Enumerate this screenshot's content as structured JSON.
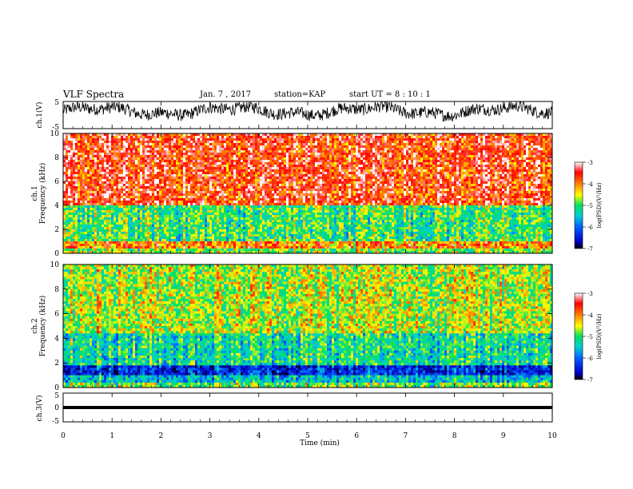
{
  "header": {
    "title": "VLF Spectra",
    "date": "Jan. 7 , 2017",
    "station": "station=KAP",
    "start": "start UT =  8 : 10 : 1"
  },
  "chart_data": [
    {
      "type": "line",
      "name": "ch1-waveform",
      "ylabel": "ch.1(V)",
      "ylim": [
        -5,
        5
      ],
      "yticks": [
        "5",
        "-5"
      ],
      "xlim": [
        0,
        10
      ],
      "description_values": "noisy waveform fluctuating roughly between -3 and 5 V"
    },
    {
      "type": "heatmap",
      "name": "ch1-spectrogram",
      "ylabel_top": "ch.1",
      "ylabel": "Frequency (kHz)",
      "ylim": [
        0,
        10
      ],
      "yticks": [
        "0",
        "2",
        "4",
        "6",
        "8",
        "10"
      ],
      "xlim": [
        0,
        9.83
      ],
      "colorbar": {
        "label": "log(PSD)(V²/Hz)",
        "range": [
          -7,
          -3
        ],
        "ticks": [
          "-3",
          "-4",
          "-5",
          "-6",
          "-7"
        ]
      },
      "bands": [
        {
          "f0": 0,
          "f1": 0.5,
          "level": -4.8
        },
        {
          "f0": 0.5,
          "f1": 1.0,
          "level": -4.0
        },
        {
          "f0": 1.0,
          "f1": 4.0,
          "level": -5.0
        },
        {
          "f0": 4.0,
          "f1": 10.0,
          "level": -3.6
        }
      ]
    },
    {
      "type": "heatmap",
      "name": "ch2-spectrogram",
      "ylabel_top": "ch.2",
      "ylabel": "Frequency (kHz)",
      "ylim": [
        0,
        10
      ],
      "yticks": [
        "0",
        "2",
        "4",
        "6",
        "8",
        "10"
      ],
      "xlim": [
        0,
        9.83
      ],
      "colorbar": {
        "label": "log(PSD)(V²/Hz)",
        "range": [
          -7,
          -3
        ],
        "ticks": [
          "-3",
          "-4",
          "-5",
          "-6",
          "-7"
        ]
      },
      "bands": [
        {
          "f0": 0,
          "f1": 0.5,
          "level": -4.8
        },
        {
          "f0": 0.5,
          "f1": 1.0,
          "level": -5.5
        },
        {
          "f0": 1.0,
          "f1": 1.8,
          "level": -6.4
        },
        {
          "f0": 1.8,
          "f1": 4.5,
          "level": -5.2
        },
        {
          "f0": 4.5,
          "f1": 10.0,
          "level": -4.6
        }
      ]
    },
    {
      "type": "line",
      "name": "ch3-waveform",
      "ylabel": "ch.3(V)",
      "ylim": [
        -5,
        5
      ],
      "yticks": [
        "5",
        "0",
        "-5"
      ],
      "xlim": [
        0,
        10
      ],
      "constant_value": 0
    }
  ],
  "xaxis": {
    "label": "Time (min)",
    "ticks": [
      "0",
      "1",
      "2",
      "3",
      "4",
      "5",
      "6",
      "7",
      "8",
      "9",
      "10"
    ]
  }
}
